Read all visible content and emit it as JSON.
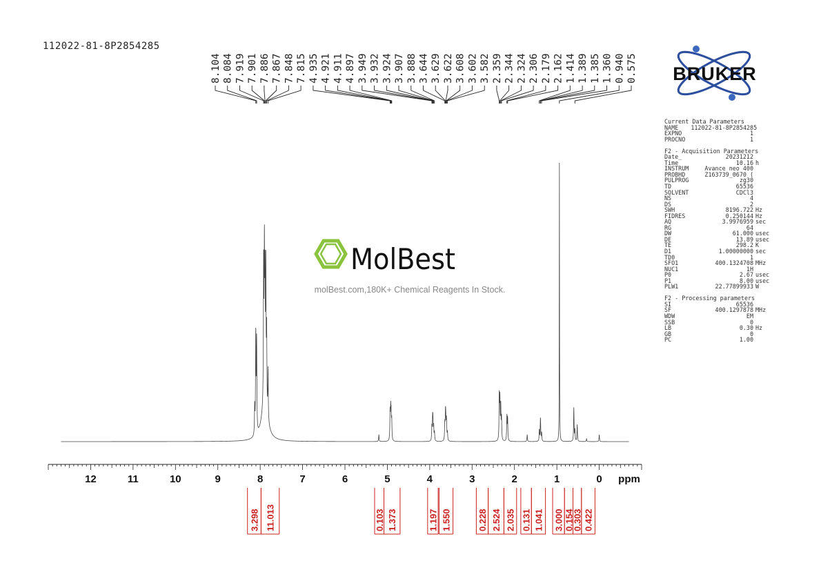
{
  "sample_id": "112022-81-8P2854285",
  "watermark": {
    "brand": "MolBest",
    "tagline": "molBest.com,180K+ Chemical Reagents In Stock."
  },
  "logo": {
    "text": "BRUKER",
    "ring_color": "#2d4f9e",
    "dot_color": "#3d68c0"
  },
  "colors": {
    "integral": "#cc2222",
    "trace": "#444444",
    "axis": "#222222"
  },
  "parameters": {
    "current": {
      "title": "Current Data Parameters",
      "rows": [
        {
          "k": "NAME",
          "v": "112022-81-8P2854285",
          "u": ""
        },
        {
          "k": "EXPNO",
          "v": "1",
          "u": ""
        },
        {
          "k": "PROCNO",
          "v": "1",
          "u": ""
        }
      ]
    },
    "acquisition": {
      "title": "F2 - Acquisition Parameters",
      "rows": [
        {
          "k": "Date_",
          "v": "20231212",
          "u": ""
        },
        {
          "k": "Time",
          "v": "10.16",
          "u": "h"
        },
        {
          "k": "INSTRUM",
          "v": "Avance neo 400",
          "u": ""
        },
        {
          "k": "PROBHD",
          "v": "Z163739_0670 (",
          "u": ""
        },
        {
          "k": "PULPROG",
          "v": "zg30",
          "u": ""
        },
        {
          "k": "TD",
          "v": "65536",
          "u": ""
        },
        {
          "k": "SOLVENT",
          "v": "CDCl3",
          "u": ""
        },
        {
          "k": "NS",
          "v": "4",
          "u": ""
        },
        {
          "k": "DS",
          "v": "2",
          "u": ""
        },
        {
          "k": "SWH",
          "v": "8196.722",
          "u": "Hz"
        },
        {
          "k": "FIDRES",
          "v": "0.250144",
          "u": "Hz"
        },
        {
          "k": "AQ",
          "v": "3.9976959",
          "u": "sec"
        },
        {
          "k": "RG",
          "v": "64",
          "u": ""
        },
        {
          "k": "DW",
          "v": "61.000",
          "u": "usec"
        },
        {
          "k": "DE",
          "v": "13.89",
          "u": "usec"
        },
        {
          "k": "TE",
          "v": "298.2",
          "u": "K"
        },
        {
          "k": "D1",
          "v": "1.00000000",
          "u": "sec"
        },
        {
          "k": "TD0",
          "v": "1",
          "u": ""
        },
        {
          "k": "SFO1",
          "v": "400.1324708",
          "u": "MHz"
        },
        {
          "k": "NUC1",
          "v": "1H",
          "u": ""
        },
        {
          "k": "P0",
          "v": "2.67",
          "u": "usec"
        },
        {
          "k": "P1",
          "v": "8.00",
          "u": "usec"
        },
        {
          "k": "PLW1",
          "v": "22.77899933",
          "u": "W"
        }
      ]
    },
    "processing": {
      "title": "F2 - Processing parameters",
      "rows": [
        {
          "k": "SI",
          "v": "65536",
          "u": ""
        },
        {
          "k": "SF",
          "v": "400.1297878",
          "u": "MHz"
        },
        {
          "k": "WDW",
          "v": "EM",
          "u": ""
        },
        {
          "k": "SSB",
          "v": "0",
          "u": ""
        },
        {
          "k": "LB",
          "v": "0.30",
          "u": "Hz"
        },
        {
          "k": "GB",
          "v": "0",
          "u": ""
        },
        {
          "k": "PC",
          "v": "1.00",
          "u": ""
        }
      ]
    }
  },
  "chart_data": {
    "type": "line",
    "xlabel": "ppm",
    "xlim": [
      13,
      -1
    ],
    "x_ticks": [
      12,
      11,
      10,
      9,
      8,
      7,
      6,
      5,
      4,
      3,
      2,
      1,
      0
    ],
    "x_reversed": true,
    "peak_labels": [
      "8.104",
      "8.084",
      "7.919",
      "7.901",
      "7.886",
      "7.867",
      "7.848",
      "7.815",
      "4.935",
      "4.921",
      "4.911",
      "4.897",
      "3.949",
      "3.932",
      "3.924",
      "3.907",
      "3.888",
      "3.644",
      "3.629",
      "3.622",
      "3.608",
      "3.602",
      "3.582",
      "2.359",
      "2.344",
      "2.324",
      "2.306",
      "2.179",
      "2.162",
      "1.414",
      "1.389",
      "1.385",
      "1.360",
      "0.940",
      "0.575"
    ],
    "peaks": [
      {
        "ppm": 8.104,
        "height": 0.36
      },
      {
        "ppm": 8.084,
        "height": 0.33
      },
      {
        "ppm": 8.13,
        "height": 0.1
      },
      {
        "ppm": 7.919,
        "height": 0.5
      },
      {
        "ppm": 7.901,
        "height": 0.52
      },
      {
        "ppm": 7.886,
        "height": 0.42
      },
      {
        "ppm": 7.867,
        "height": 0.48
      },
      {
        "ppm": 7.848,
        "height": 0.28
      },
      {
        "ppm": 7.815,
        "height": 0.18
      },
      {
        "ppm": 5.2,
        "height": 0.025
      },
      {
        "ppm": 4.935,
        "height": 0.1
      },
      {
        "ppm": 4.921,
        "height": 0.1
      },
      {
        "ppm": 4.911,
        "height": 0.08
      },
      {
        "ppm": 4.897,
        "height": 0.07
      },
      {
        "ppm": 3.949,
        "height": 0.05
      },
      {
        "ppm": 3.932,
        "height": 0.07
      },
      {
        "ppm": 3.924,
        "height": 0.06
      },
      {
        "ppm": 3.907,
        "height": 0.05
      },
      {
        "ppm": 3.888,
        "height": 0.03
      },
      {
        "ppm": 3.644,
        "height": 0.06
      },
      {
        "ppm": 3.629,
        "height": 0.08
      },
      {
        "ppm": 3.622,
        "height": 0.06
      },
      {
        "ppm": 3.608,
        "height": 0.05
      },
      {
        "ppm": 3.602,
        "height": 0.04
      },
      {
        "ppm": 3.582,
        "height": 0.03
      },
      {
        "ppm": 2.359,
        "height": 0.16
      },
      {
        "ppm": 2.344,
        "height": 0.14
      },
      {
        "ppm": 2.324,
        "height": 0.12
      },
      {
        "ppm": 2.306,
        "height": 0.08
      },
      {
        "ppm": 2.179,
        "height": 0.09
      },
      {
        "ppm": 2.162,
        "height": 0.08
      },
      {
        "ppm": 1.7,
        "height": 0.025
      },
      {
        "ppm": 1.414,
        "height": 0.04
      },
      {
        "ppm": 1.389,
        "height": 0.05
      },
      {
        "ppm": 1.385,
        "height": 0.04
      },
      {
        "ppm": 1.36,
        "height": 0.03
      },
      {
        "ppm": 0.94,
        "height": 1.0
      },
      {
        "ppm": 0.6,
        "height": 0.12
      },
      {
        "ppm": 0.575,
        "height": 0.04
      },
      {
        "ppm": 0.52,
        "height": 0.06
      },
      {
        "ppm": 0.3,
        "height": 0.01
      },
      {
        "ppm": 0.0,
        "height": 0.025
      }
    ],
    "integrals": [
      {
        "value": "3.298",
        "from": 8.3,
        "to": 7.98
      },
      {
        "value": "11.013",
        "from": 7.98,
        "to": 7.55
      },
      {
        "value": "0.103",
        "from": 5.3,
        "to": 5.08
      },
      {
        "value": "1.373",
        "from": 5.08,
        "to": 4.7
      },
      {
        "value": "1.197",
        "from": 4.05,
        "to": 3.8
      },
      {
        "value": "1.550",
        "from": 3.78,
        "to": 3.45
      },
      {
        "value": "0.228",
        "from": 2.9,
        "to": 2.62
      },
      {
        "value": "2.524",
        "from": 2.62,
        "to": 2.25
      },
      {
        "value": "2.035",
        "from": 2.25,
        "to": 1.95
      },
      {
        "value": "0.131",
        "from": 1.85,
        "to": 1.6
      },
      {
        "value": "1.041",
        "from": 1.6,
        "to": 1.27
      },
      {
        "value": "3.000",
        "from": 1.1,
        "to": 0.82
      },
      {
        "value": "0.154",
        "from": 0.82,
        "to": 0.62
      },
      {
        "value": "0.303",
        "from": 0.62,
        "to": 0.42
      },
      {
        "value": "0.422",
        "from": 0.42,
        "to": 0.1
      }
    ]
  }
}
